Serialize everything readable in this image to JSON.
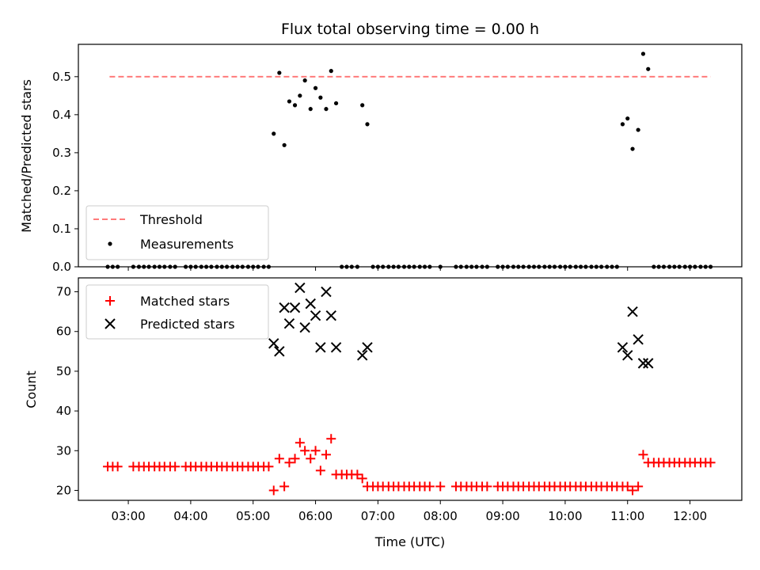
{
  "chart_data": [
    {
      "type": "scatter",
      "panel": "top",
      "title": "Flux total observing time = 0.00 h",
      "xlabel": "",
      "ylabel": "Matched/Predicted stars",
      "xlim": [
        2.2,
        12.83
      ],
      "ylim": [
        0,
        0.585
      ],
      "yticks": [
        0.0,
        0.1,
        0.2,
        0.3,
        0.4,
        0.5
      ],
      "ytick_labels": [
        "0.0",
        "0.1",
        "0.2",
        "0.3",
        "0.4",
        "0.5"
      ],
      "legend": {
        "placement": "lower-left",
        "entries": [
          "Threshold",
          "Measurements"
        ]
      },
      "threshold": {
        "name": "Threshold",
        "value": 0.5,
        "x_start": 2.7,
        "x_end": 12.33,
        "color": "#ff7b7b",
        "style": "dashed"
      },
      "measurements": {
        "name": "Measurements",
        "color": "#000000",
        "x": [
          5.33,
          5.42,
          5.5,
          5.58,
          5.67,
          5.75,
          5.83,
          5.92,
          6.0,
          6.08,
          6.17,
          6.25,
          6.33,
          6.75,
          6.83,
          10.92,
          11.0,
          11.08,
          11.17,
          11.25,
          11.33
        ],
        "y": [
          0.35,
          0.51,
          0.32,
          0.435,
          0.425,
          0.45,
          0.49,
          0.415,
          0.47,
          0.445,
          0.415,
          0.515,
          0.43,
          0.425,
          0.375,
          0.375,
          0.39,
          0.31,
          0.36,
          0.56,
          0.52
        ]
      },
      "zero_measurements_x": [
        2.67,
        2.75,
        2.83,
        3.08,
        3.17,
        3.25,
        3.33,
        3.42,
        3.5,
        3.58,
        3.67,
        3.75,
        3.92,
        4.0,
        4.08,
        4.17,
        4.25,
        4.33,
        4.42,
        4.5,
        4.58,
        4.67,
        4.75,
        4.83,
        4.92,
        5.0,
        5.08,
        5.17,
        5.25,
        6.42,
        6.5,
        6.58,
        6.67,
        6.92,
        7.0,
        7.08,
        7.17,
        7.25,
        7.33,
        7.42,
        7.5,
        7.58,
        7.67,
        7.75,
        7.83,
        8.0,
        8.25,
        8.33,
        8.42,
        8.5,
        8.58,
        8.67,
        8.75,
        8.92,
        9.0,
        9.08,
        9.17,
        9.25,
        9.33,
        9.42,
        9.5,
        9.58,
        9.67,
        9.75,
        9.83,
        9.92,
        10.0,
        10.08,
        10.17,
        10.25,
        10.33,
        10.42,
        10.5,
        10.58,
        10.67,
        10.75,
        10.83,
        11.42,
        11.5,
        11.58,
        11.67,
        11.75,
        11.83,
        11.92,
        12.0,
        12.08,
        12.17,
        12.25,
        12.33
      ]
    },
    {
      "type": "scatter",
      "panel": "bottom",
      "xlabel": "Time (UTC)",
      "ylabel": "Count",
      "xlim": [
        2.2,
        12.83
      ],
      "ylim": [
        17.5,
        73.5
      ],
      "xticks": [
        3,
        4,
        5,
        6,
        7,
        8,
        9,
        10,
        11,
        12
      ],
      "xtick_labels": [
        "03:00",
        "04:00",
        "05:00",
        "06:00",
        "07:00",
        "08:00",
        "09:00",
        "10:00",
        "11:00",
        "12:00"
      ],
      "yticks": [
        20,
        30,
        40,
        50,
        60,
        70
      ],
      "ytick_labels": [
        "20",
        "30",
        "40",
        "50",
        "60",
        "70"
      ],
      "legend": {
        "placement": "upper-left",
        "entries": [
          "Matched stars",
          "Predicted stars"
        ]
      },
      "series": [
        {
          "name": "Matched stars",
          "marker": "plus",
          "color": "#ff0000",
          "x": [
            2.67,
            2.75,
            2.83,
            3.08,
            3.17,
            3.25,
            3.33,
            3.42,
            3.5,
            3.58,
            3.67,
            3.75,
            3.92,
            4.0,
            4.08,
            4.17,
            4.25,
            4.33,
            4.42,
            4.5,
            4.58,
            4.67,
            4.75,
            4.83,
            4.92,
            5.0,
            5.08,
            5.17,
            5.25,
            5.33,
            5.42,
            5.5,
            5.58,
            5.67,
            5.75,
            5.83,
            5.92,
            6.0,
            6.08,
            6.17,
            6.25,
            6.33,
            6.42,
            6.5,
            6.58,
            6.67,
            6.75,
            6.83,
            6.92,
            7.0,
            7.08,
            7.17,
            7.25,
            7.33,
            7.42,
            7.5,
            7.58,
            7.67,
            7.75,
            7.83,
            8.0,
            8.25,
            8.33,
            8.42,
            8.5,
            8.58,
            8.67,
            8.75,
            8.92,
            9.0,
            9.08,
            9.17,
            9.25,
            9.33,
            9.42,
            9.5,
            9.58,
            9.67,
            9.75,
            9.83,
            9.92,
            10.0,
            10.08,
            10.17,
            10.25,
            10.33,
            10.42,
            10.5,
            10.58,
            10.67,
            10.75,
            10.83,
            10.92,
            11.0,
            11.08,
            11.17,
            11.25,
            11.33,
            11.42,
            11.5,
            11.58,
            11.67,
            11.75,
            11.83,
            11.92,
            12.0,
            12.08,
            12.17,
            12.25,
            12.33
          ],
          "y": [
            26,
            26,
            26,
            26,
            26,
            26,
            26,
            26,
            26,
            26,
            26,
            26,
            26,
            26,
            26,
            26,
            26,
            26,
            26,
            26,
            26,
            26,
            26,
            26,
            26,
            26,
            26,
            26,
            26,
            20,
            28,
            21,
            27,
            28,
            32,
            30,
            28,
            30,
            25,
            29,
            33,
            24,
            24,
            24,
            24,
            24,
            23,
            21,
            21,
            21,
            21,
            21,
            21,
            21,
            21,
            21,
            21,
            21,
            21,
            21,
            21,
            21,
            21,
            21,
            21,
            21,
            21,
            21,
            21,
            21,
            21,
            21,
            21,
            21,
            21,
            21,
            21,
            21,
            21,
            21,
            21,
            21,
            21,
            21,
            21,
            21,
            21,
            21,
            21,
            21,
            21,
            21,
            21,
            21,
            20,
            21,
            29,
            27,
            27,
            27,
            27,
            27,
            27,
            27,
            27,
            27,
            27,
            27,
            27,
            27
          ]
        },
        {
          "name": "Predicted stars",
          "marker": "x",
          "color": "#000000",
          "x": [
            5.33,
            5.42,
            5.5,
            5.58,
            5.67,
            5.75,
            5.83,
            5.92,
            6.0,
            6.08,
            6.17,
            6.25,
            6.33,
            6.75,
            6.83,
            10.92,
            11.0,
            11.08,
            11.17,
            11.25,
            11.33
          ],
          "y": [
            57,
            55,
            66,
            62,
            66,
            71,
            61,
            67,
            64,
            56,
            70,
            64,
            56,
            54,
            56,
            56,
            54,
            65,
            58,
            52,
            52
          ]
        }
      ]
    }
  ]
}
